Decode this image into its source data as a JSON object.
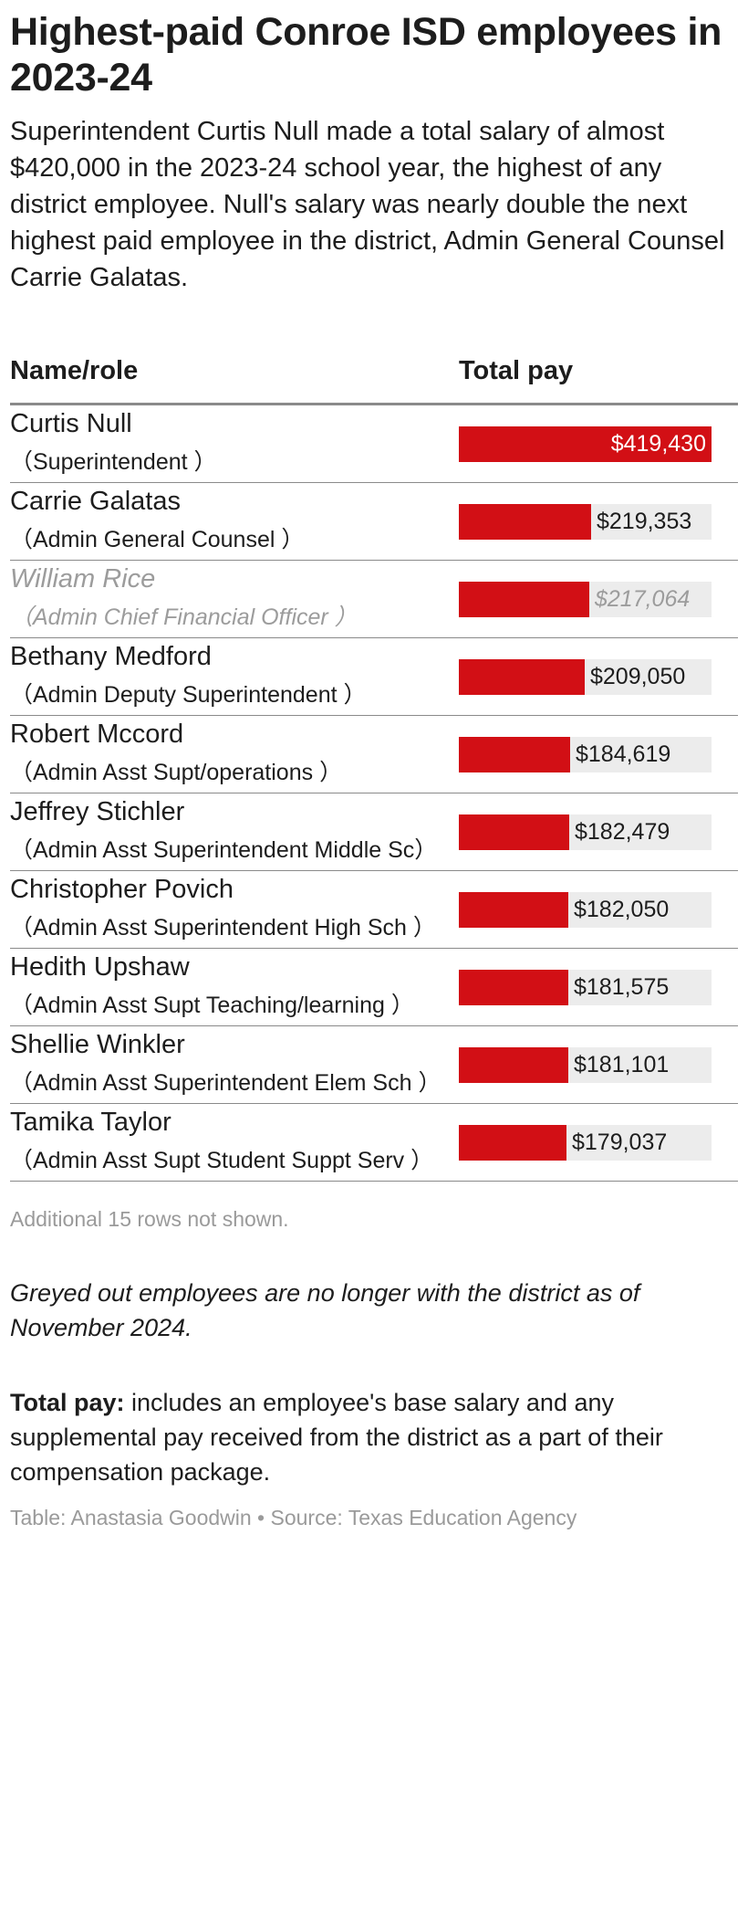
{
  "title": "Highest-paid Conroe ISD employees in 2023-24",
  "description": "Superintendent Curtis Null made a total salary of almost $420,000 in the 2023-24 school year, the highest of any district employee. Null's salary was nearly double the next highest paid employee in the district, Admin General Counsel Carrie Galatas.",
  "columns": {
    "name": "Name/role",
    "pay": "Total pay"
  },
  "more_rows": "Additional 15 rows not shown.",
  "note": "Greyed out employees are no longer with the district as of November 2024.",
  "definition": {
    "label": "Total pay:",
    "text": " includes an employee's base salary and any supplemental pay received from the district as a part of their compensation package."
  },
  "credit": "Table: Anastasia Goodwin • Source: Texas Education Agency",
  "colors": {
    "bar": "#d20f15",
    "track": "#ececec",
    "greyed": "#9c9c9c"
  },
  "chart_data": {
    "type": "table",
    "xlim": [
      0,
      419430
    ],
    "rows": [
      {
        "name": "Curtis Null",
        "role": "（Superintendent ）",
        "value": 419430,
        "label": "$419,430",
        "greyed": false
      },
      {
        "name": "Carrie Galatas",
        "role": "（Admin General Counsel ）",
        "value": 219353,
        "label": "$219,353",
        "greyed": false
      },
      {
        "name": "William Rice",
        "role": "（Admin Chief Financial Officer ）",
        "value": 217064,
        "label": "$217,064",
        "greyed": true
      },
      {
        "name": "Bethany Medford",
        "role": "（Admin Deputy Superintendent ）",
        "value": 209050,
        "label": "$209,050",
        "greyed": false
      },
      {
        "name": "Robert Mccord",
        "role": "（Admin Asst Supt/operations ）",
        "value": 184619,
        "label": "$184,619",
        "greyed": false
      },
      {
        "name": "Jeffrey Stichler",
        "role": "（Admin Asst Superintendent Middle Sc）",
        "value": 182479,
        "label": "$182,479",
        "greyed": false
      },
      {
        "name": "Christopher Povich",
        "role": "（Admin Asst Superintendent High Sch ）",
        "value": 182050,
        "label": "$182,050",
        "greyed": false
      },
      {
        "name": "Hedith Upshaw",
        "role": "（Admin Asst Supt Teaching/learning ）",
        "value": 181575,
        "label": "$181,575",
        "greyed": false
      },
      {
        "name": "Shellie Winkler",
        "role": "（Admin Asst Superintendent Elem Sch ）",
        "value": 181101,
        "label": "$181,101",
        "greyed": false
      },
      {
        "name": "Tamika Taylor",
        "role": "（Admin Asst Supt Student Suppt Serv ）",
        "value": 179037,
        "label": "$179,037",
        "greyed": false
      }
    ]
  }
}
